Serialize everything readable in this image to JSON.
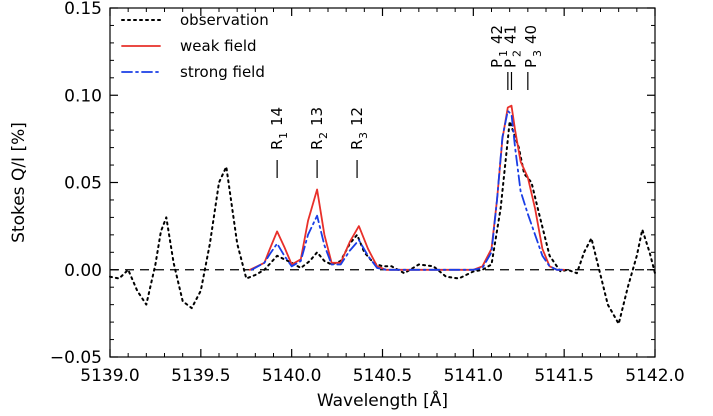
{
  "chart_data": {
    "type": "line",
    "xlabel": "Wavelength [Å]",
    "ylabel": "Stokes Q/I [%]",
    "xlim": [
      5139.0,
      5142.0
    ],
    "ylim": [
      -0.05,
      0.15
    ],
    "x_ticks": [
      "5139.0",
      "5139.5",
      "5140.0",
      "5140.5",
      "5141.0",
      "5141.5",
      "5142.0"
    ],
    "y_ticks": [
      "−0.05",
      "0.00",
      "0.05",
      "0.10",
      "0.15"
    ],
    "legend_position": "top-left",
    "reference_line": {
      "y": 0.0,
      "style": "dashed",
      "color": "#000000"
    },
    "series": [
      {
        "name": "observation",
        "style": "dotted",
        "color": "#000000",
        "x": [
          5139.0,
          5139.05,
          5139.1,
          5139.15,
          5139.2,
          5139.25,
          5139.28,
          5139.31,
          5139.35,
          5139.4,
          5139.45,
          5139.5,
          5139.55,
          5139.6,
          5139.64,
          5139.7,
          5139.75,
          5139.8,
          5139.85,
          5139.92,
          5140.0,
          5140.05,
          5140.1,
          5140.14,
          5140.18,
          5140.22,
          5140.27,
          5140.32,
          5140.36,
          5140.4,
          5140.45,
          5140.5,
          5140.55,
          5140.62,
          5140.7,
          5140.78,
          5140.85,
          5140.92,
          5141.0,
          5141.05,
          5141.1,
          5141.15,
          5141.2,
          5141.25,
          5141.28,
          5141.32,
          5141.36,
          5141.42,
          5141.48,
          5141.52,
          5141.57,
          5141.61,
          5141.65,
          5141.7,
          5141.74,
          5141.8,
          5141.85,
          5141.9,
          5141.93,
          5141.97,
          5142.0
        ],
        "y": [
          -0.004,
          -0.005,
          0.0,
          -0.012,
          -0.02,
          0.003,
          0.022,
          0.03,
          0.004,
          -0.018,
          -0.022,
          -0.012,
          0.015,
          0.05,
          0.059,
          0.015,
          -0.005,
          -0.003,
          0.0,
          0.008,
          0.004,
          0.001,
          0.005,
          0.01,
          0.005,
          0.003,
          0.005,
          0.015,
          0.02,
          0.01,
          0.004,
          0.002,
          0.002,
          -0.002,
          0.003,
          0.002,
          -0.004,
          -0.005,
          -0.001,
          0.0,
          0.003,
          0.035,
          0.085,
          0.07,
          0.055,
          0.05,
          0.033,
          0.008,
          -0.001,
          0.0,
          -0.002,
          0.01,
          0.018,
          -0.003,
          -0.02,
          -0.031,
          -0.01,
          0.008,
          0.023,
          0.01,
          -0.002
        ]
      },
      {
        "name": "weak field",
        "style": "solid",
        "color": "#e8302a",
        "x": [
          5139.77,
          5139.85,
          5139.88,
          5139.92,
          5139.96,
          5140.0,
          5140.05,
          5140.09,
          5140.14,
          5140.18,
          5140.22,
          5140.27,
          5140.32,
          5140.37,
          5140.42,
          5140.47,
          5140.52,
          5140.6,
          5140.7,
          5140.8,
          5140.9,
          5141.0,
          5141.05,
          5141.1,
          5141.13,
          5141.16,
          5141.19,
          5141.21,
          5141.23,
          5141.26,
          5141.3,
          5141.34,
          5141.38,
          5141.42,
          5141.46,
          5141.5
        ],
        "y": [
          0.0,
          0.004,
          0.012,
          0.022,
          0.013,
          0.003,
          0.006,
          0.028,
          0.046,
          0.02,
          0.004,
          0.004,
          0.016,
          0.025,
          0.012,
          0.002,
          0.0,
          0.0,
          0.0,
          0.0,
          0.0,
          0.0,
          0.002,
          0.012,
          0.04,
          0.075,
          0.093,
          0.094,
          0.08,
          0.062,
          0.053,
          0.035,
          0.012,
          0.002,
          0.0,
          0.0
        ]
      },
      {
        "name": "strong field",
        "style": "dashdot",
        "color": "#1a3ee6",
        "x": [
          5139.78,
          5139.85,
          5139.88,
          5139.92,
          5139.96,
          5140.0,
          5140.05,
          5140.09,
          5140.14,
          5140.18,
          5140.22,
          5140.27,
          5140.32,
          5140.37,
          5140.42,
          5140.47,
          5140.52,
          5140.6,
          5140.7,
          5140.8,
          5140.9,
          5141.0,
          5141.05,
          5141.1,
          5141.13,
          5141.16,
          5141.19,
          5141.21,
          5141.23,
          5141.26,
          5141.3,
          5141.34,
          5141.38,
          5141.42,
          5141.46,
          5141.5
        ],
        "y": [
          0.0,
          0.004,
          0.009,
          0.015,
          0.008,
          0.002,
          0.005,
          0.02,
          0.031,
          0.014,
          0.003,
          0.003,
          0.011,
          0.017,
          0.008,
          0.001,
          0.0,
          0.0,
          0.0,
          0.0,
          0.0,
          0.0,
          0.001,
          0.01,
          0.04,
          0.076,
          0.091,
          0.089,
          0.07,
          0.045,
          0.032,
          0.02,
          0.008,
          0.002,
          0.0,
          0.0
        ]
      }
    ],
    "line_labels": [
      {
        "x": 5139.92,
        "main": "R",
        "sub": "1",
        "number": "14"
      },
      {
        "x": 5140.14,
        "main": "R",
        "sub": "2",
        "number": "13"
      },
      {
        "x": 5140.36,
        "main": "R",
        "sub": "3",
        "number": "12"
      },
      {
        "x": 5141.19,
        "main": "P",
        "sub": "1",
        "number": "42"
      },
      {
        "x": 5141.21,
        "main": "P",
        "sub": "2",
        "number": "41"
      },
      {
        "x": 5141.3,
        "main": "P",
        "sub": "3",
        "number": "40"
      }
    ]
  }
}
